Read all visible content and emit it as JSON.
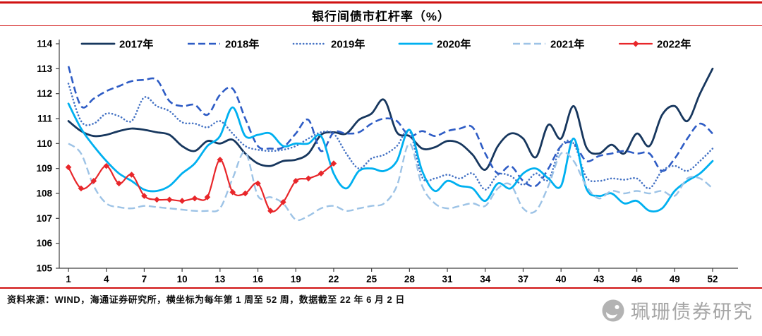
{
  "page": {
    "title": "银行间债市杠杆率（%）",
    "footer": "资料来源：WIND，海通证券研究所，横坐标为每年第 1 周至 52 周，数据截至 22 年 6 月 2 日",
    "watermark": "珮珊债券研究"
  },
  "colors": {
    "rule_red": "#d01212",
    "watermark_gray": "#a6a6a6",
    "axis": "#404040",
    "tick_label": "#000000"
  },
  "chart_data": {
    "type": "line",
    "title": "银行间债市杠杆率（%）",
    "xlabel": "",
    "ylabel": "",
    "ylim": [
      105,
      114
    ],
    "y_ticks": [
      105,
      106,
      107,
      108,
      109,
      110,
      111,
      112,
      113,
      114
    ],
    "x_ticks": [
      1,
      4,
      7,
      10,
      13,
      16,
      19,
      22,
      25,
      28,
      31,
      34,
      37,
      40,
      43,
      46,
      49,
      52
    ],
    "x_range": [
      1,
      52
    ],
    "grid": false,
    "legend_position": "top",
    "series": [
      {
        "name": "2017年",
        "color": "#17375E",
        "style": "solid",
        "width": 2.8,
        "values": [
          110.9,
          110.5,
          110.3,
          110.35,
          110.5,
          110.6,
          110.55,
          110.45,
          110.35,
          109.9,
          109.7,
          110.1,
          110.0,
          110.15,
          109.6,
          109.2,
          109.1,
          109.3,
          109.35,
          109.6,
          110.35,
          110.45,
          110.4,
          110.95,
          111.2,
          111.75,
          110.45,
          110.3,
          109.8,
          109.85,
          110.1,
          110.0,
          109.55,
          108.95,
          109.9,
          110.4,
          110.2,
          109.45,
          110.75,
          110.2,
          111.5,
          109.85,
          109.6,
          109.95,
          109.6,
          110.4,
          109.9,
          111.15,
          111.5,
          110.9,
          112.0,
          113.0
        ]
      },
      {
        "name": "2018年",
        "color": "#2E5CC5",
        "style": "dashed",
        "width": 2.6,
        "values": [
          113.1,
          111.5,
          111.8,
          112.1,
          112.3,
          112.5,
          112.55,
          112.55,
          111.7,
          111.5,
          111.55,
          111.15,
          111.95,
          112.2,
          111.0,
          109.9,
          109.8,
          109.85,
          110.4,
          110.95,
          109.7,
          110.45,
          110.4,
          110.45,
          110.8,
          111.0,
          110.9,
          110.3,
          110.5,
          110.3,
          110.5,
          110.6,
          110.65,
          109.6,
          108.8,
          109.1,
          108.5,
          108.3,
          109.0,
          109.9,
          110.0,
          109.3,
          109.5,
          109.6,
          109.7,
          109.6,
          109.6,
          108.9,
          109.4,
          110.2,
          110.8,
          110.4
        ]
      },
      {
        "name": "2019年",
        "color": "#4472C4",
        "style": "dotted",
        "width": 2.6,
        "values": [
          112.4,
          110.9,
          110.8,
          111.2,
          111.1,
          110.9,
          111.85,
          111.5,
          111.3,
          110.85,
          110.8,
          110.65,
          110.9,
          110.4,
          109.9,
          109.75,
          109.7,
          109.75,
          109.9,
          110.2,
          110.45,
          110.4,
          109.6,
          109.0,
          109.4,
          109.55,
          109.9,
          110.5,
          108.65,
          108.6,
          108.75,
          108.6,
          108.8,
          108.15,
          108.75,
          108.7,
          108.35,
          108.8,
          108.55,
          109.9,
          110.0,
          108.65,
          108.5,
          108.6,
          108.55,
          108.6,
          108.2,
          108.9,
          109.1,
          108.9,
          109.3,
          109.8
        ]
      },
      {
        "name": "2020年",
        "color": "#00B0F0",
        "style": "solid",
        "width": 2.8,
        "values": [
          111.6,
          110.6,
          109.9,
          109.3,
          108.8,
          108.5,
          108.15,
          108.1,
          108.3,
          108.8,
          109.2,
          109.9,
          110.3,
          111.45,
          110.3,
          110.35,
          110.4,
          109.9,
          110.0,
          110.0,
          110.3,
          108.8,
          108.2,
          108.9,
          109.0,
          108.9,
          109.3,
          110.55,
          108.9,
          108.1,
          108.5,
          108.3,
          108.2,
          107.7,
          108.4,
          108.2,
          108.8,
          109.0,
          108.6,
          108.3,
          110.2,
          108.2,
          107.9,
          108.0,
          107.6,
          107.7,
          107.3,
          107.4,
          108.1,
          108.5,
          108.8,
          109.3
        ]
      },
      {
        "name": "2021年",
        "color": "#9DC3E6",
        "style": "dashed",
        "width": 2.4,
        "values": [
          110.0,
          109.6,
          108.3,
          107.6,
          107.45,
          107.4,
          107.5,
          107.45,
          107.4,
          107.35,
          107.3,
          107.3,
          107.4,
          108.6,
          109.65,
          107.9,
          107.85,
          107.6,
          106.95,
          107.1,
          107.4,
          107.5,
          107.3,
          107.4,
          107.5,
          107.6,
          108.3,
          110.0,
          108.3,
          107.6,
          107.4,
          107.5,
          107.6,
          107.5,
          108.2,
          108.35,
          107.4,
          107.3,
          108.3,
          109.6,
          109.3,
          108.3,
          107.8,
          108.1,
          108.0,
          108.1,
          108.0,
          108.1,
          107.9,
          108.6,
          108.6,
          108.2
        ]
      },
      {
        "name": "2022年",
        "color": "#E8262A",
        "style": "solid",
        "width": 2.2,
        "marker": "diamond",
        "values": [
          109.05,
          108.2,
          108.5,
          109.1,
          108.4,
          108.75,
          107.9,
          107.75,
          107.75,
          107.7,
          107.8,
          107.85,
          109.35,
          108.05,
          108.0,
          108.4,
          107.3,
          107.65,
          108.5,
          108.6,
          108.8,
          109.2
        ]
      }
    ]
  }
}
